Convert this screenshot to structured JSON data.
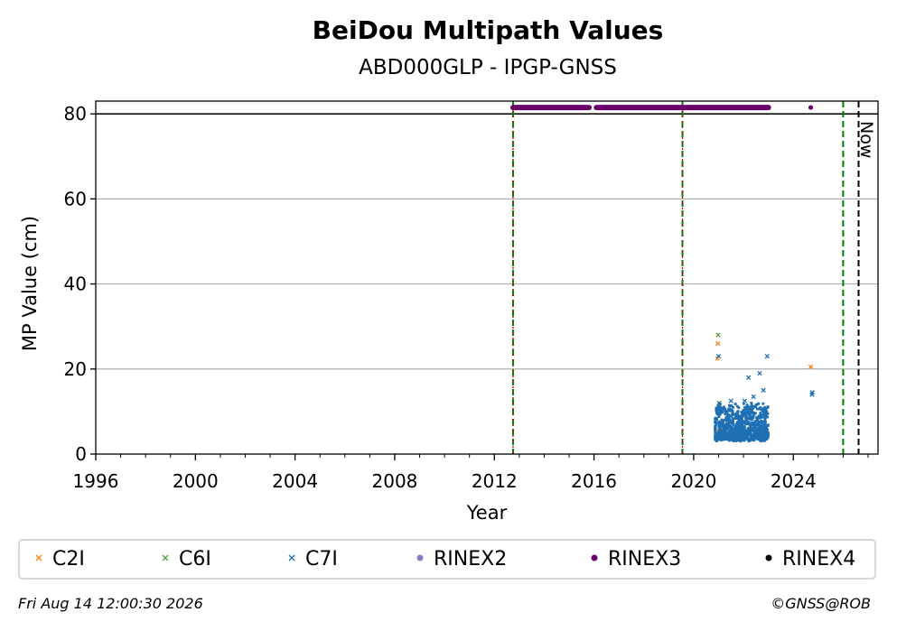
{
  "chart_data": {
    "type": "scatter",
    "title": "BeiDou Multipath Values",
    "subtitle": "ABD000GLP - IPGP-GNSS",
    "xlabel": "Year",
    "ylabel": "MP Value (cm)",
    "xlim": [
      1996,
      2027.4
    ],
    "ylim": [
      0,
      83
    ],
    "xticks": [
      1996,
      2000,
      2004,
      2008,
      2012,
      2016,
      2020,
      2024
    ],
    "yticks": [
      0,
      20,
      40,
      60,
      80
    ],
    "grid": "y",
    "reference_line_y": 80,
    "vertical_markers": [
      {
        "x": 2012.75,
        "color": "#008000",
        "style": "dashed",
        "overlay_color": "#cc0000"
      },
      {
        "x": 2019.55,
        "color": "#008000",
        "style": "dashed",
        "overlay_color": "#cc0000"
      },
      {
        "x": 2026.0,
        "color": "#008000",
        "style": "dashed"
      },
      {
        "x": 2026.62,
        "color": "#000000",
        "style": "dashed",
        "label": "Now"
      }
    ],
    "series": [
      {
        "name": "C2I",
        "color": "#ff7f0e",
        "marker": "x",
        "x": [
          2020.95,
          2020.97,
          2021.0,
          2021.1,
          2022.3,
          2022.9,
          2024.7
        ],
        "y": [
          22.5,
          26.0,
          5.5,
          7.0,
          6.5,
          9.0,
          20.5
        ]
      },
      {
        "name": "C6I",
        "color": "#55a040",
        "marker": "x",
        "x": [
          2020.98,
          2021.02,
          2022.95,
          2022.9,
          2021.5
        ],
        "y": [
          28.0,
          12.0,
          4.5,
          10.5,
          6.0
        ]
      },
      {
        "name": "C7I",
        "color": "#1f6fb4",
        "marker": "x",
        "x": [
          2021.0,
          2021.05,
          2021.5,
          2022.05,
          2022.2,
          2022.4,
          2022.65,
          2022.8,
          2022.95,
          2024.75,
          2024.76
        ],
        "y": [
          23.0,
          11.5,
          12.5,
          12.5,
          18.0,
          13.5,
          19.0,
          15.0,
          23.0,
          14.0,
          14.5
        ],
        "dense_band": {
          "x_start": 2020.85,
          "x_end": 2023.0,
          "y_low": 3.0,
          "y_high": 11.0
        }
      },
      {
        "name": "RINEX2",
        "color": "#8080c8",
        "marker": "circle",
        "x": [],
        "y": []
      },
      {
        "name": "RINEX3",
        "color": "#6a006a",
        "marker": "circle",
        "y_level": 81.5,
        "segments": [
          [
            2012.75,
            2015.8
          ],
          [
            2016.1,
            2019.5
          ],
          [
            2019.55,
            2023.0
          ]
        ],
        "x": [
          2024.7
        ],
        "y": [
          81.5
        ]
      },
      {
        "name": "RINEX4",
        "color": "#000000",
        "marker": "circle",
        "x": [],
        "y": []
      }
    ],
    "legend_placement": "bottom"
  },
  "footer": {
    "timestamp": "Fri Aug 14 12:00:30 2026",
    "credit": "©GNSS@ROB"
  },
  "now_label": "Now"
}
